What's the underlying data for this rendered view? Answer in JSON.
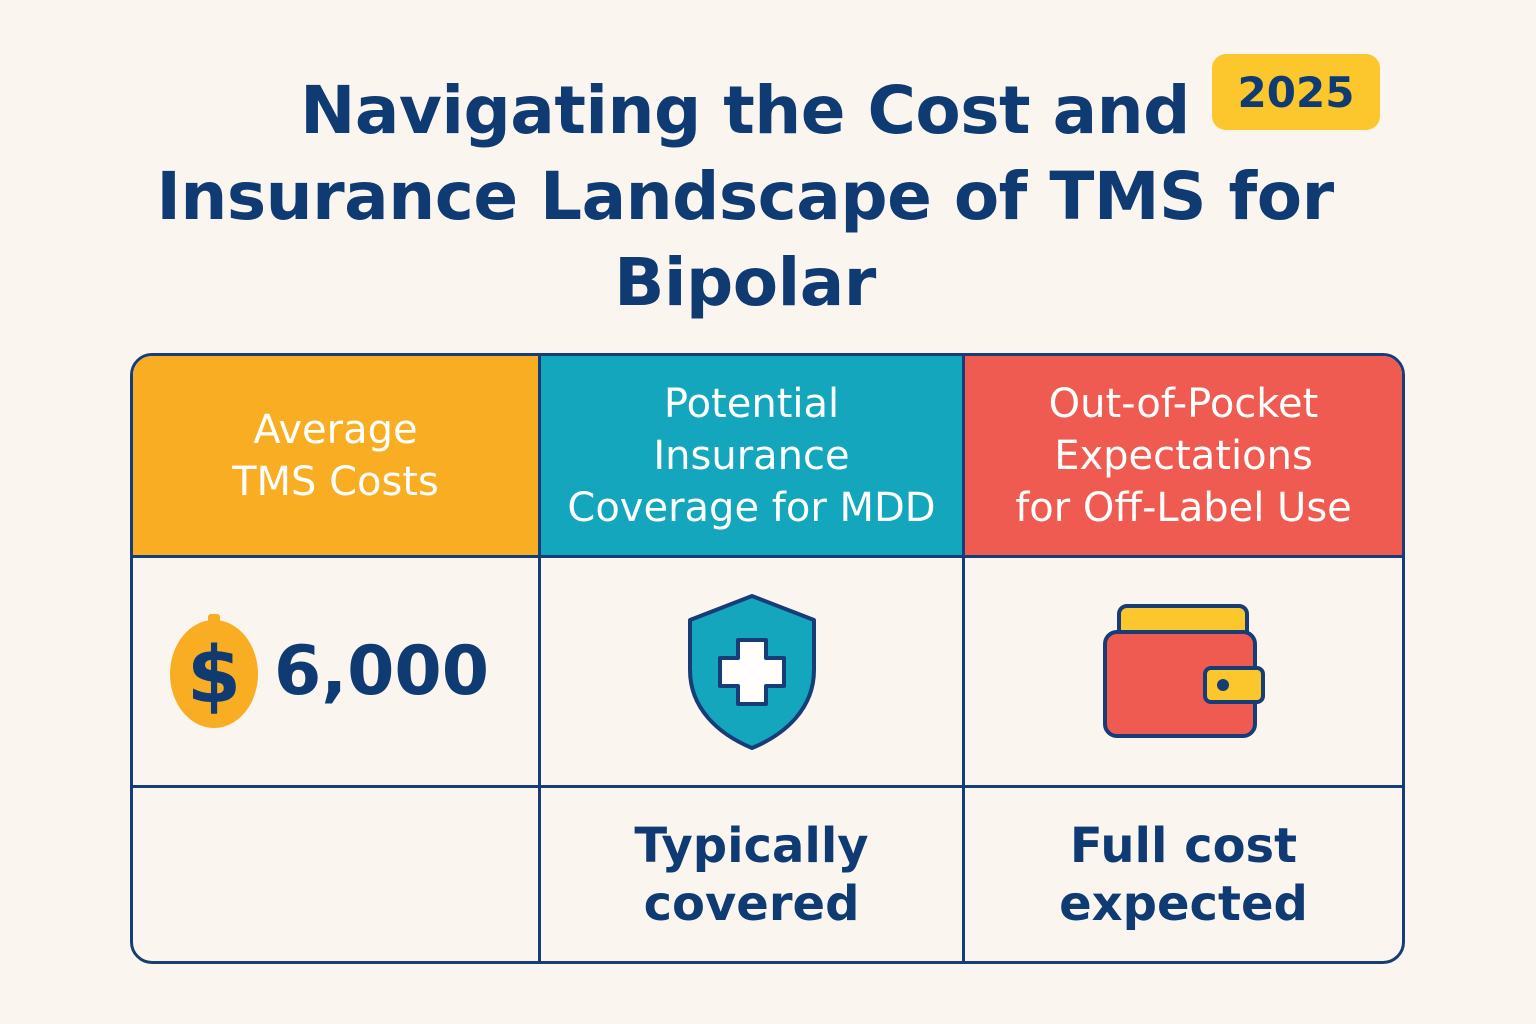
{
  "header": {
    "title_lines": [
      "Navigating the Cost and",
      "Insurance Landscape of TMS for",
      "Bipolar"
    ],
    "year_badge": "2025"
  },
  "table": {
    "columns": [
      {
        "header_lines": [
          "Average",
          "TMS Costs"
        ],
        "header_color": "#f9ad23",
        "icon": "dollar-coin-icon",
        "value": "6,000",
        "note_lines": []
      },
      {
        "header_lines": [
          "Potential",
          "Insurance",
          "Coverage for MDD"
        ],
        "header_color": "#14a6bd",
        "icon": "shield-plus-icon",
        "note_lines": [
          "Typically",
          "covered"
        ]
      },
      {
        "header_lines": [
          "Out-of-Pocket",
          "Expectations",
          "for Off-Label Use"
        ],
        "header_color": "#ef5b50",
        "icon": "wallet-icon",
        "note_lines": [
          "Full cost",
          "expected"
        ]
      }
    ]
  },
  "colors": {
    "background": "#faf6ef",
    "navy": "#0f3a72",
    "badge": "#fcc72c"
  }
}
